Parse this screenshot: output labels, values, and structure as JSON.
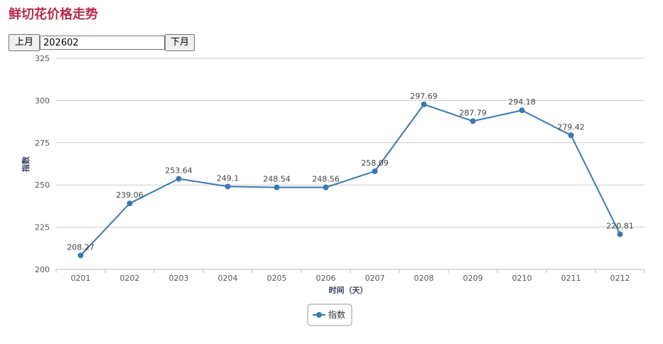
{
  "page": {
    "title": "鲜切花价格走势",
    "prev_label": "上月",
    "next_label": "下月",
    "month_value": "202602"
  },
  "colors": {
    "title": "#b8294a",
    "series": "#3a78b4",
    "grid": "#cccccc"
  },
  "chart_data": {
    "type": "line",
    "title": "",
    "xlabel": "时间（天）",
    "ylabel": "指数",
    "categories": [
      "0201",
      "0202",
      "0203",
      "0204",
      "0205",
      "0206",
      "0207",
      "0208",
      "0209",
      "0210",
      "0211",
      "0212"
    ],
    "series": [
      {
        "name": "指数",
        "values": [
          208.27,
          239.06,
          253.64,
          249.1,
          248.54,
          248.56,
          258.09,
          297.69,
          287.79,
          294.18,
          279.42,
          220.81
        ],
        "labels": [
          "208.27",
          "239.06",
          "253.64",
          "249.1",
          "248.54",
          "248.56",
          "258.09",
          "297.69",
          "287.79",
          "294.18",
          "279.42",
          "220.81"
        ]
      }
    ],
    "ylim": [
      200,
      325
    ],
    "yticks": [
      "200",
      "225",
      "250",
      "275",
      "300",
      "325"
    ],
    "grid": true,
    "legend": "bottom-center",
    "data_labels": true
  }
}
